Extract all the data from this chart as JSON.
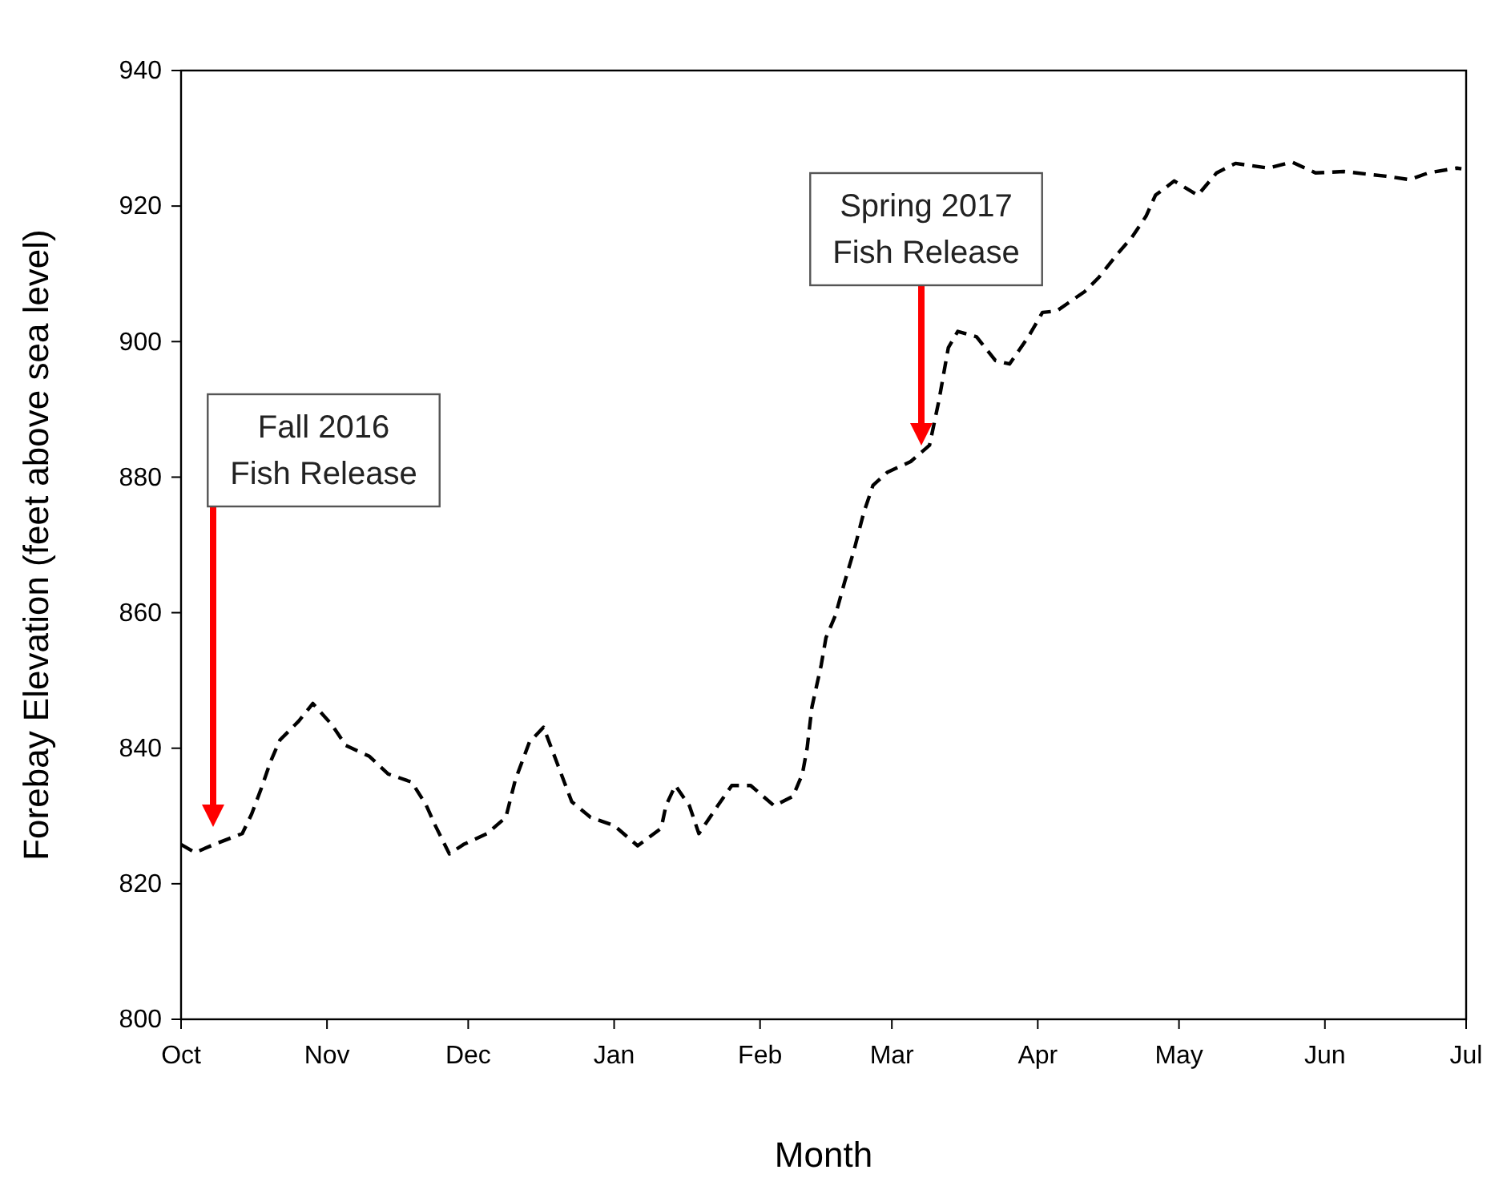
{
  "chart_data": {
    "type": "line",
    "xlabel": "Month",
    "ylabel": "Forebay Elevation (feet above sea level)",
    "x": [
      "2016-10-01",
      "2016-10-04",
      "2016-10-08",
      "2016-10-14",
      "2016-10-16",
      "2016-10-18",
      "2016-10-20",
      "2016-10-22",
      "2016-10-26",
      "2016-10-29",
      "2016-11-02",
      "2016-11-05",
      "2016-11-10",
      "2016-11-14",
      "2016-11-19",
      "2016-11-22",
      "2016-11-24",
      "2016-11-27",
      "2016-11-30",
      "2016-12-05",
      "2016-12-09",
      "2016-12-11",
      "2016-12-14",
      "2016-12-17",
      "2016-12-20",
      "2016-12-23",
      "2016-12-27",
      "2017-01-01",
      "2017-01-06",
      "2017-01-11",
      "2017-01-12",
      "2017-01-14",
      "2017-01-17",
      "2017-01-19",
      "2017-01-23",
      "2017-01-26",
      "2017-01-30",
      "2017-02-04",
      "2017-02-08",
      "2017-02-10",
      "2017-02-11",
      "2017-02-12",
      "2017-02-14",
      "2017-02-15",
      "2017-02-17",
      "2017-02-19",
      "2017-02-21",
      "2017-02-23",
      "2017-02-25",
      "2017-02-28",
      "2017-03-05",
      "2017-03-09",
      "2017-03-11",
      "2017-03-13",
      "2017-03-15",
      "2017-03-19",
      "2017-03-23",
      "2017-03-26",
      "2017-03-30",
      "2017-04-02",
      "2017-04-05",
      "2017-04-11",
      "2017-04-14",
      "2017-04-18",
      "2017-04-21",
      "2017-04-24",
      "2017-04-26",
      "2017-04-30",
      "2017-05-05",
      "2017-05-09",
      "2017-05-13",
      "2017-05-20",
      "2017-05-25",
      "2017-05-30",
      "2017-06-05",
      "2017-06-14",
      "2017-06-19",
      "2017-06-23",
      "2017-06-29",
      "2017-06-30"
    ],
    "series": [
      {
        "color": "#000000",
        "values": [
          825.8,
          824.6,
          825.8,
          827.4,
          830.3,
          834,
          838,
          841.2,
          844,
          846.6,
          843.5,
          840.4,
          838.8,
          836.2,
          835,
          831.7,
          828.6,
          824.4,
          825.8,
          827.4,
          829.8,
          835.3,
          840.9,
          843.1,
          837.6,
          832.1,
          829.8,
          828.6,
          825.6,
          828.2,
          831.5,
          834.5,
          831.5,
          827.4,
          831.5,
          834.5,
          834.5,
          831.5,
          832.9,
          836.2,
          840,
          846,
          852.3,
          856.3,
          859.6,
          864.6,
          869.3,
          874.7,
          878.8,
          880.7,
          882.3,
          884.7,
          891.3,
          899.1,
          901.5,
          900.7,
          897.2,
          896.7,
          900.7,
          904.3,
          904.5,
          907.4,
          909.5,
          913,
          915.4,
          918.5,
          921.6,
          923.7,
          921.6,
          924.9,
          926.3,
          925.6,
          926.5,
          924.9,
          925.1,
          924.4,
          923.9,
          924.9,
          925.6,
          925.5
        ]
      }
    ],
    "xlim": [
      "2016-10-01",
      "2017-07-01"
    ],
    "xticks": [
      {
        "value": "2016-10-01",
        "label": "Oct"
      },
      {
        "value": "2016-11-01",
        "label": "Nov"
      },
      {
        "value": "2016-12-01",
        "label": "Dec"
      },
      {
        "value": "2017-01-01",
        "label": "Jan"
      },
      {
        "value": "2017-02-01",
        "label": "Feb"
      },
      {
        "value": "2017-03-01",
        "label": "Mar"
      },
      {
        "value": "2017-04-01",
        "label": "Apr"
      },
      {
        "value": "2017-05-01",
        "label": "May"
      },
      {
        "value": "2017-06-01",
        "label": "Jun"
      },
      {
        "value": "2017-07-01",
        "label": "Jul"
      }
    ],
    "ylim": [
      800,
      940
    ],
    "yticks": [
      800,
      820,
      840,
      860,
      880,
      900,
      920,
      940
    ],
    "grid": false,
    "marker": "none",
    "line_style": "dashed",
    "annotations": [
      "Fall 2016\nFish Release",
      "Spring 2017\nFish Release"
    ]
  }
}
